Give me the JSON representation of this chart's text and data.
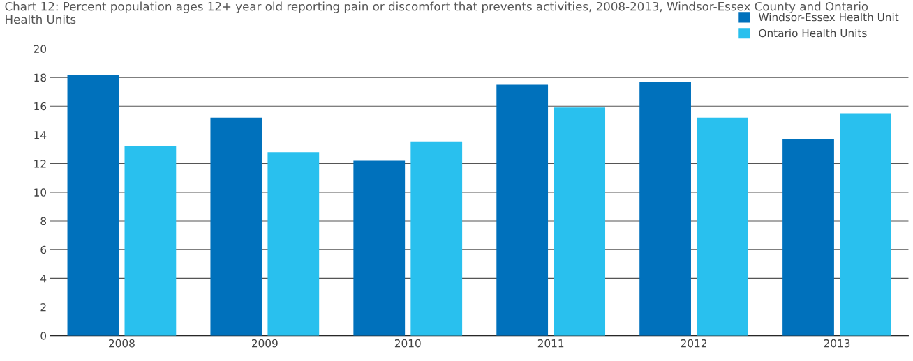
{
  "chart_data": {
    "type": "bar",
    "title": "Chart 12: Percent population ages 12+ year old reporting pain or discomfort that prevents activities, 2008-2013, Windsor-Essex County and Ontario Health Units",
    "categories": [
      "2008",
      "2009",
      "2010",
      "2011",
      "2012",
      "2013"
    ],
    "series": [
      {
        "name": "Windsor-Essex Health Unit",
        "color": "#0071bc",
        "values": [
          18.2,
          15.2,
          12.2,
          17.5,
          17.7,
          13.7
        ]
      },
      {
        "name": "Ontario Health Units",
        "color": "#29c0ee",
        "values": [
          13.2,
          12.8,
          13.5,
          15.9,
          15.2,
          15.5
        ]
      }
    ],
    "ylim": [
      0,
      20
    ],
    "yticks": [
      0,
      2,
      4,
      6,
      8,
      10,
      12,
      14,
      16,
      18,
      20
    ],
    "grid": "y",
    "legend": "top right"
  }
}
